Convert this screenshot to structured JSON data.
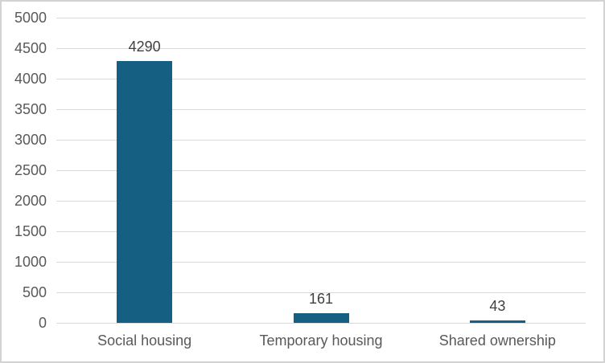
{
  "chart_data": {
    "type": "bar",
    "title": "",
    "xlabel": "",
    "ylabel": "",
    "categories": [
      "Social housing",
      "Temporary housing",
      "Shared ownership"
    ],
    "values": [
      4290,
      161,
      43
    ],
    "data_labels": [
      "4290",
      "161",
      "43"
    ],
    "ylim": [
      0,
      5000
    ],
    "ytick_interval": 500,
    "ytick_labels": [
      "0",
      "500",
      "1000",
      "1500",
      "2000",
      "2500",
      "3000",
      "3500",
      "4000",
      "4500",
      "5000"
    ],
    "grid": true,
    "legend": "none",
    "colors": {
      "bar": "#156082",
      "gridline": "#d9d9d9",
      "axis_text": "#595959",
      "data_label_text": "#404040",
      "frame_border": "#d3d3d3",
      "background": "#ffffff"
    }
  }
}
